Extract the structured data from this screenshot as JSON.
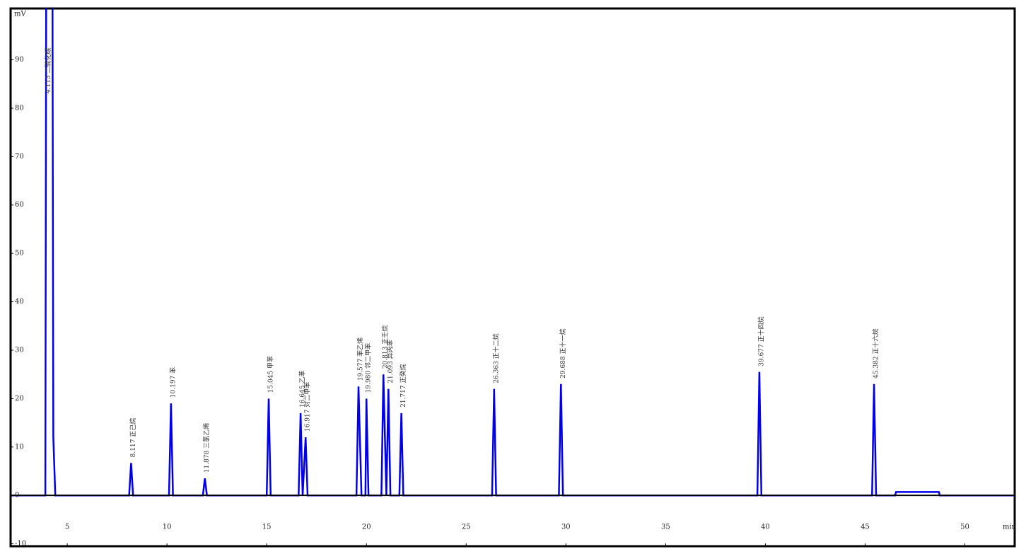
{
  "chart_data": {
    "type": "line",
    "x": [
      2.2,
      3.9,
      3.95,
      4.25,
      4.3,
      4.4,
      8.1,
      8.2,
      8.3,
      10.1,
      10.2,
      10.3,
      11.8,
      11.9,
      12.0,
      15.0,
      15.1,
      15.2,
      16.6,
      16.7,
      16.8,
      16.95,
      17.05,
      19.5,
      19.6,
      19.75,
      19.95,
      20.0,
      20.1,
      20.75,
      20.85,
      21.0,
      21.1,
      21.2,
      21.65,
      21.75,
      21.85,
      26.3,
      26.4,
      26.5,
      29.65,
      29.75,
      29.85,
      39.6,
      39.7,
      39.8,
      45.35,
      45.45,
      45.55,
      46.5,
      46.55,
      48.7,
      48.75,
      52.5
    ],
    "values": [
      0,
      0,
      120,
      120,
      12,
      0,
      0,
      6.7,
      0,
      0,
      19,
      0,
      0,
      3.5,
      0,
      0,
      20,
      0,
      0,
      17,
      0,
      12,
      0,
      0,
      22.5,
      0,
      0,
      20,
      0,
      0,
      25,
      0,
      22,
      0,
      0,
      17,
      0,
      0,
      22,
      0,
      0,
      23,
      0,
      0,
      25.5,
      0,
      0,
      23,
      0,
      0,
      0.7,
      0.7,
      0,
      0
    ],
    "point_labels": [
      null,
      null,
      "4.113 二硫化碳",
      null,
      null,
      null,
      null,
      "8.117 正己烷",
      null,
      null,
      "10.197 苯",
      null,
      null,
      "11.878 三氯乙烯",
      null,
      null,
      "15.045 甲苯",
      null,
      null,
      "16.645 乙苯",
      null,
      "16.917 对二甲苯",
      null,
      null,
      "19.577 苯乙烯",
      null,
      null,
      "19.980 邻二甲苯",
      null,
      null,
      "20.813 正壬烷",
      null,
      "21.093 异丙苯",
      null,
      null,
      "21.717 正癸烷",
      null,
      null,
      "26.363 正十二烷",
      null,
      null,
      "29.688 正十一烷",
      null,
      null,
      "39.677 正十四烷",
      null,
      null,
      "45.382 正十六烷",
      null,
      null,
      null,
      null,
      null,
      null
    ],
    "color": "#0000ee",
    "xlim": [
      2.16,
      52.5
    ],
    "ylim": [
      -10.5,
      100.6
    ],
    "xticks": [
      5,
      10,
      15,
      20,
      25,
      30,
      35,
      40,
      45,
      50
    ],
    "yticks": [
      -10,
      0,
      10,
      20,
      30,
      40,
      50,
      60,
      70,
      80,
      90
    ],
    "xlabel": "min",
    "ylabel": "mV"
  }
}
